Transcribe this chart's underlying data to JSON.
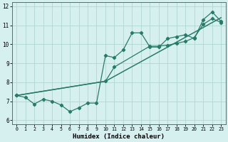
{
  "title": "",
  "xlabel": "Humidex (Indice chaleur)",
  "bg_color": "#d6f0f0",
  "grid_color": "#b0d8d0",
  "line_color": "#2a7a6a",
  "xlim": [
    -0.5,
    23.5
  ],
  "ylim": [
    5.8,
    12.2
  ],
  "xticks": [
    0,
    1,
    2,
    3,
    4,
    5,
    6,
    7,
    8,
    9,
    10,
    11,
    12,
    13,
    14,
    15,
    16,
    17,
    18,
    19,
    20,
    21,
    22,
    23
  ],
  "yticks": [
    6,
    7,
    8,
    9,
    10,
    11,
    12
  ],
  "series1_x": [
    0,
    1,
    2,
    3,
    4,
    5,
    6,
    7,
    8,
    9,
    10,
    11,
    12,
    13,
    14,
    15,
    16,
    17,
    18,
    19,
    20,
    21,
    22,
    23
  ],
  "series1_y": [
    7.3,
    7.2,
    6.85,
    7.1,
    7.0,
    6.8,
    6.45,
    6.65,
    6.9,
    6.9,
    9.4,
    9.3,
    9.7,
    10.6,
    10.6,
    9.85,
    9.85,
    10.3,
    10.4,
    10.5,
    10.3,
    11.3,
    11.7,
    11.2
  ],
  "series2_x": [
    0,
    10,
    11,
    15,
    16,
    17,
    18,
    19,
    20,
    21,
    22,
    23
  ],
  "series2_y": [
    7.3,
    8.05,
    8.8,
    9.9,
    9.9,
    9.95,
    10.05,
    10.15,
    10.35,
    11.05,
    11.35,
    11.15
  ],
  "series3_x": [
    0,
    10,
    23
  ],
  "series3_y": [
    7.3,
    8.05,
    11.4
  ],
  "marker": "D",
  "markersize": 2.2,
  "linewidth": 0.9
}
